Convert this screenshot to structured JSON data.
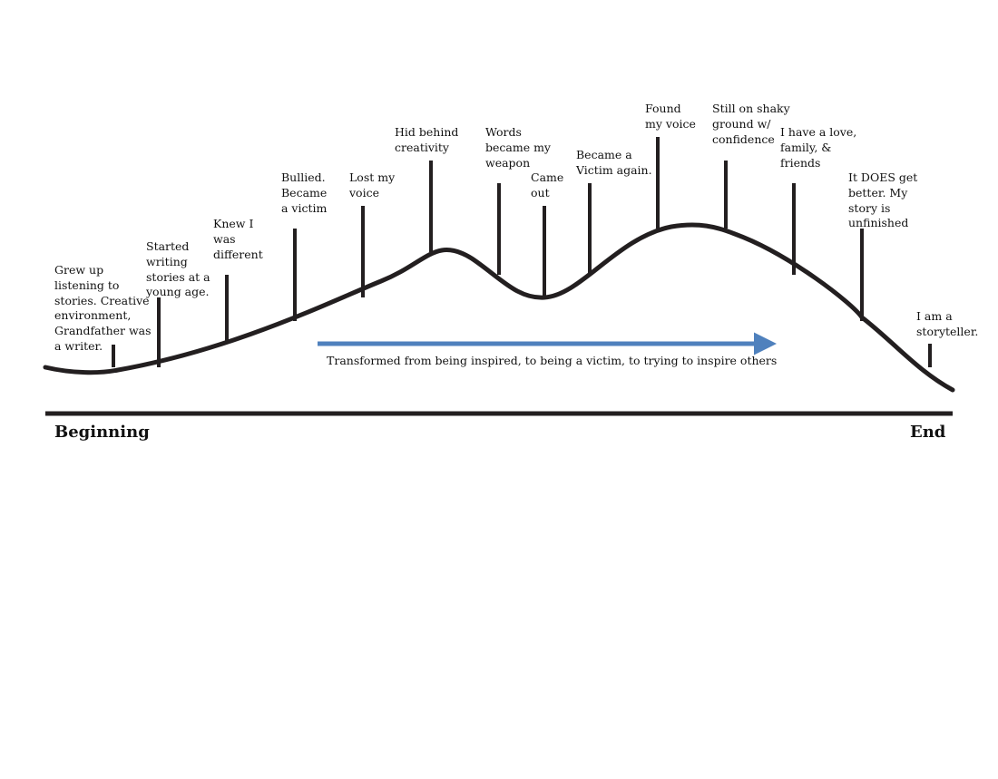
{
  "colors": {
    "line": "#231f20",
    "arrow": "#4f81bd",
    "text": "#111111"
  },
  "axis": {
    "start_label": "Beginning",
    "end_label": "End"
  },
  "arrow": {
    "caption": "Transformed from being inspired, to being a victim, to trying to inspire others"
  },
  "events": [
    {
      "label": "Grew up\nlistening to\nstories. Creative\nenvironment,\nGrandfather was\na writer."
    },
    {
      "label": "Started\nwriting\nstories at a\nyoung age."
    },
    {
      "label": "Knew I\nwas\ndifferent"
    },
    {
      "label": "Bullied.\nBecame\na victim"
    },
    {
      "label": "Lost my\nvoice"
    },
    {
      "label": "Hid behind\ncreativity"
    },
    {
      "label": "Words\nbecame my\nweapon"
    },
    {
      "label": "Came\nout"
    },
    {
      "label": "Became a\nVictim again."
    },
    {
      "label": "Found\nmy voice"
    },
    {
      "label": "Still on shaky\nground w/\nconfidence"
    },
    {
      "label": "I have a love,\nfamily, &\nfriends"
    },
    {
      "label": "It DOES get\nbetter. My\nstory is\nunfinished"
    },
    {
      "label": "I am a\nstoryteller."
    }
  ]
}
